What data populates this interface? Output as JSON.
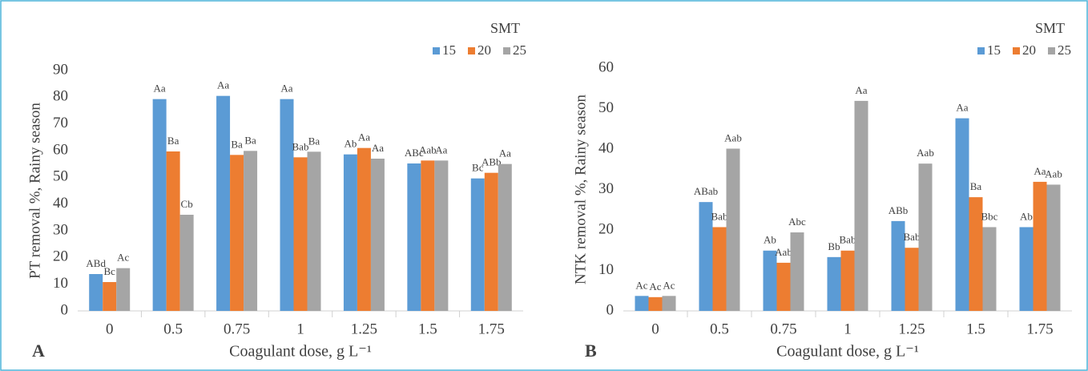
{
  "chart_data": [
    {
      "type": "bar",
      "panel": "A",
      "ylabel": "PT removal %, Rainy season",
      "xlabel": "Coagulant dose, g L⁻¹",
      "legend_title": "SMT",
      "categories": [
        "0",
        "0.5",
        "0.75",
        "1",
        "1.25",
        "1.5",
        "1.75"
      ],
      "ylim": [
        0,
        90
      ],
      "yticks": [
        0,
        10,
        20,
        30,
        40,
        50,
        60,
        70,
        80,
        90
      ],
      "series": [
        {
          "name": "15",
          "color": "#5b9bd5",
          "values": [
            13.8,
            79.3,
            80.5,
            79.3,
            58.6,
            55.2,
            49.6
          ],
          "letters": [
            "ABd",
            "Aa",
            "Aa",
            "Aa",
            "Ab",
            "ABc",
            "Bc"
          ]
        },
        {
          "name": "20",
          "color": "#ed7d31",
          "values": [
            10.8,
            59.7,
            58.4,
            57.5,
            61.0,
            56.3,
            51.7
          ],
          "letters": [
            "Bc",
            "Ba",
            "Ba",
            "Bab",
            "Aa",
            "Aab",
            "ABb"
          ]
        },
        {
          "name": "25",
          "color": "#a5a5a5",
          "values": [
            16.0,
            36.0,
            59.9,
            59.6,
            57.0,
            56.3,
            55.0
          ],
          "letters": [
            "Ac",
            "Cb",
            "Ba",
            "Ba",
            "Aa",
            "Aa",
            "Aa"
          ]
        }
      ]
    },
    {
      "type": "bar",
      "panel": "B",
      "ylabel": "NTK removal %, Rainy season",
      "xlabel": "Coagulant dose, g L⁻¹",
      "legend_title": "SMT",
      "categories": [
        "0",
        "0.5",
        "0.75",
        "1",
        "1.25",
        "1.5",
        "1.75"
      ],
      "ylim": [
        0,
        60
      ],
      "yticks": [
        0,
        10,
        20,
        30,
        40,
        50,
        60
      ],
      "series": [
        {
          "name": "15",
          "color": "#5b9bd5",
          "values": [
            3.7,
            26.9,
            14.9,
            13.3,
            22.2,
            47.6,
            20.7
          ],
          "letters": [
            "Ac",
            "ABab",
            "Ab",
            "Bb",
            "ABb",
            "Aa",
            "Ab"
          ]
        },
        {
          "name": "20",
          "color": "#ed7d31",
          "values": [
            3.4,
            20.7,
            11.9,
            14.9,
            15.6,
            28.1,
            31.9
          ],
          "letters": [
            "Ac",
            "Bab",
            "Aab",
            "Bab",
            "Bab",
            "Ba",
            "Aa"
          ]
        },
        {
          "name": "25",
          "color": "#a5a5a5",
          "values": [
            3.7,
            40.1,
            19.4,
            51.9,
            36.4,
            20.7,
            31.2
          ],
          "letters": [
            "Ac",
            "Aab",
            "Abc",
            "Aa",
            "Aab",
            "Bbc",
            "Aab"
          ]
        }
      ]
    }
  ]
}
